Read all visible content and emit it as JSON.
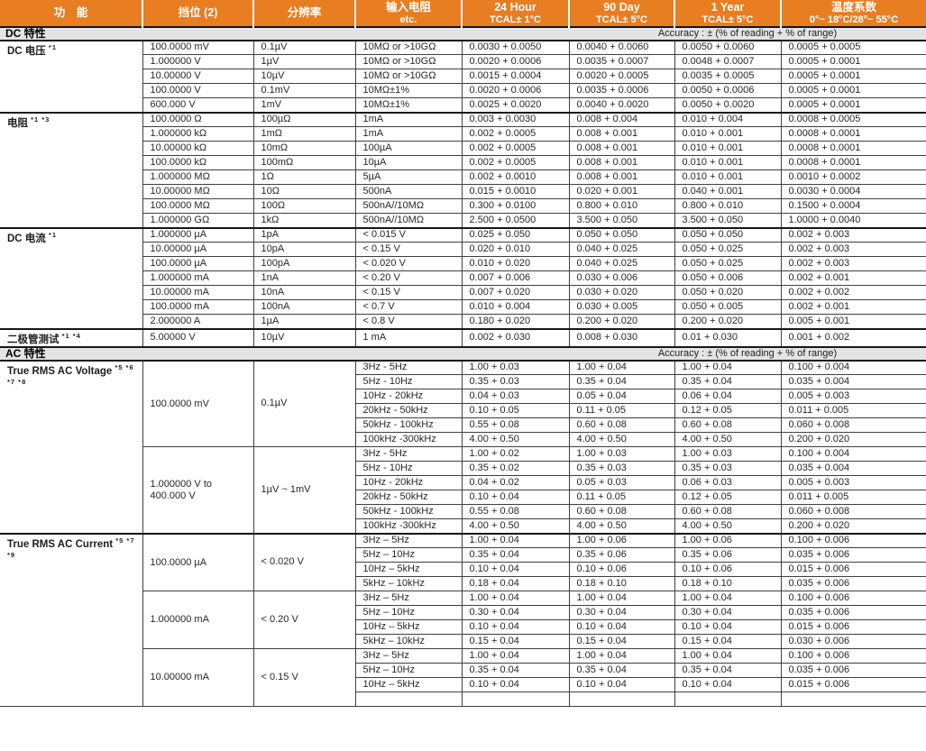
{
  "colors": {
    "accent_orange": "#E87D22",
    "band_gray": "#E4E4E4",
    "grid_line": "#3F3F3F"
  },
  "header": {
    "columns": [
      {
        "line1": "功　能",
        "line2": ""
      },
      {
        "line1": "挡位 (2)",
        "line2": ""
      },
      {
        "line1": "分辨率",
        "line2": ""
      },
      {
        "line1": "输入电阻",
        "line2": "etc."
      },
      {
        "line1": "24 Hour",
        "line2": "TCAL± 1°C"
      },
      {
        "line1": "90 Day",
        "line2": "TCAL± 5°C"
      },
      {
        "line1": "1 Year",
        "line2": "TCAL± 5°C"
      },
      {
        "line1": "温度系数",
        "line2": "0°~ 18°C/28°~ 55°C"
      }
    ]
  },
  "sections": [
    {
      "title": "DC 特性",
      "note": "Accuracy : ± (% of reading + % of range)",
      "functions": [
        {
          "label": "DC 电压",
          "notes": "*1",
          "groups": [
            {
              "span": [],
              "rows": [
                [
                  "100.0000 mV",
                  "0.1µV",
                  "10MΩ or >10GΩ",
                  "0.0030 + 0.0050",
                  "0.0040 + 0.0060",
                  "0.0050 + 0.0060",
                  "0.0005 + 0.0005"
                ],
                [
                  "1.000000 V",
                  "1µV",
                  "10MΩ or >10GΩ",
                  "0.0020 + 0.0006",
                  "0.0035 + 0.0007",
                  "0.0048 + 0.0007",
                  "0.0005 + 0.0001"
                ],
                [
                  "10.00000 V",
                  "10µV",
                  "10MΩ or >10GΩ",
                  "0.0015 + 0.0004",
                  "0.0020 + 0.0005",
                  "0.0035 + 0.0005",
                  "0.0005 + 0.0001"
                ],
                [
                  "100.0000 V",
                  "0.1mV",
                  "10MΩ±1%",
                  "0.0020 + 0.0006",
                  "0.0035 + 0.0006",
                  "0.0050 + 0.0006",
                  "0.0005 + 0.0001"
                ],
                [
                  "600.000 V",
                  "1mV",
                  "10MΩ±1%",
                  "0.0025 + 0.0020",
                  "0.0040 + 0.0020",
                  "0.0050 + 0.0020",
                  "0.0005 + 0.0001"
                ]
              ]
            }
          ]
        },
        {
          "label": "电阻",
          "notes": "*1 *3",
          "groups": [
            {
              "span": [],
              "rows": [
                [
                  "100.0000 Ω",
                  "100µΩ",
                  "1mA",
                  "0.003 + 0.0030",
                  "0.008 + 0.004",
                  "0.010 + 0.004",
                  "0.0008 + 0.0005"
                ],
                [
                  "1.000000 kΩ",
                  "1mΩ",
                  "1mA",
                  "0.002 + 0.0005",
                  "0.008 + 0.001",
                  "0.010 + 0.001",
                  "0.0008 + 0.0001"
                ],
                [
                  "10.00000 kΩ",
                  "10mΩ",
                  "100µA",
                  "0.002 + 0.0005",
                  "0.008 + 0.001",
                  "0.010 + 0.001",
                  "0.0008 + 0.0001"
                ],
                [
                  "100.0000 kΩ",
                  "100mΩ",
                  "10µA",
                  "0.002 + 0.0005",
                  "0.008 + 0.001",
                  "0.010 + 0.001",
                  "0.0008 + 0.0001"
                ],
                [
                  "1.000000 MΩ",
                  "1Ω",
                  "5µA",
                  "0.002 + 0.0010",
                  "0.008 + 0.001",
                  "0.010 + 0.001",
                  "0.0010 + 0.0002"
                ],
                [
                  "10.00000 MΩ",
                  "10Ω",
                  "500nA",
                  "0.015 + 0.0010",
                  "0.020 + 0.001",
                  "0.040 + 0.001",
                  "0.0030 + 0.0004"
                ],
                [
                  "100.0000 MΩ",
                  "100Ω",
                  "500nA//10MΩ",
                  "0.300 + 0.0100",
                  "0.800 + 0.010",
                  "0.800 + 0.010",
                  "0.1500 + 0.0004"
                ],
                [
                  "1.000000 GΩ",
                  "1kΩ",
                  "500nA//10MΩ",
                  "2.500 + 0.0500",
                  "3.500 + 0.050",
                  "3.500 + 0.050",
                  "1.0000 + 0.0040"
                ]
              ]
            }
          ]
        },
        {
          "label": "DC 电流",
          "notes": "*1",
          "groups": [
            {
              "span": [],
              "rows": [
                [
                  "1.000000 µA",
                  "1pA",
                  "< 0.015 V",
                  "0.025 + 0.050",
                  "0.050 + 0.050",
                  "0.050 + 0.050",
                  "0.002 + 0.003"
                ],
                [
                  "10.00000 µA",
                  "10pA",
                  "< 0.15 V",
                  "0.020 + 0.010",
                  "0.040 + 0.025",
                  "0.050 + 0.025",
                  "0.002 + 0.003"
                ],
                [
                  "100.0000 µA",
                  "100pA",
                  "< 0.020 V",
                  "0.010 + 0.020",
                  "0.040 + 0.025",
                  "0.050 + 0.025",
                  "0.002 + 0.003"
                ],
                [
                  "1.000000 mA",
                  "1nA",
                  "< 0.20 V",
                  "0.007 + 0.006",
                  "0.030 + 0.006",
                  "0.050 + 0.006",
                  "0.002 + 0.001"
                ],
                [
                  "10.00000 mA",
                  "10nA",
                  "< 0.15 V",
                  "0.007 + 0.020",
                  "0.030 + 0.020",
                  "0.050 + 0.020",
                  "0.002 + 0.002"
                ],
                [
                  "100.0000 mA",
                  "100nA",
                  "< 0.7 V",
                  "0.010 + 0.004",
                  "0.030 + 0.005",
                  "0.050 + 0.005",
                  "0.002 + 0.001"
                ],
                [
                  "2.000000 A",
                  "1µA",
                  "< 0.8 V",
                  "0.180 + 0.020",
                  "0.200 + 0.020",
                  "0.200 + 0.020",
                  "0.005 + 0.001"
                ]
              ]
            }
          ]
        },
        {
          "label": "二极管测试",
          "notes": "*1 *4",
          "groups": [
            {
              "span": [],
              "rows": [
                [
                  "5.00000 V",
                  "10µV",
                  "1 mA",
                  "0.002 + 0.030",
                  "0.008 + 0.030",
                  "0.01 + 0.030",
                  "0.001 + 0.002"
                ]
              ]
            }
          ]
        }
      ]
    },
    {
      "title": "AC 特性",
      "note": "Accuracy : ± (% of reading + % of range)",
      "functions": [
        {
          "label": "True RMS AC Voltage",
          "notes": "*5 *6 *7 *8",
          "groups": [
            {
              "span": [
                "100.0000 mV",
                "0.1µV"
              ],
              "rows": [
                [
                  "3Hz - 5Hz",
                  "1.00 + 0.03",
                  "1.00 + 0.04",
                  "1.00 + 0.04",
                  "0.100 + 0.004"
                ],
                [
                  "5Hz - 10Hz",
                  "0.35 + 0.03",
                  "0.35 + 0.04",
                  "0.35 + 0.04",
                  "0.035 + 0.004"
                ],
                [
                  "10Hz - 20kHz",
                  "0.04 + 0.03",
                  "0.05 + 0.04",
                  "0.06 + 0.04",
                  "0.005 + 0.003"
                ],
                [
                  "20kHz - 50kHz",
                  "0.10 + 0.05",
                  "0.11 + 0.05",
                  "0.12 + 0.05",
                  "0.011 + 0.005"
                ],
                [
                  "50kHz - 100kHz",
                  "0.55 + 0.08",
                  "0.60 + 0.08",
                  "0.60 + 0.08",
                  "0.060 + 0.008"
                ],
                [
                  "100kHz -300kHz",
                  "4.00 + 0.50",
                  "4.00 + 0.50",
                  "4.00 + 0.50",
                  "0.200 + 0.020"
                ]
              ]
            },
            {
              "span": [
                "1.000000 V to 400.000 V",
                "1µV ~ 1mV"
              ],
              "rows": [
                [
                  "3Hz - 5Hz",
                  "1.00 + 0.02",
                  "1.00 + 0.03",
                  "1.00 + 0.03",
                  "0.100 + 0.004"
                ],
                [
                  "5Hz - 10Hz",
                  "0.35 + 0.02",
                  "0.35 + 0.03",
                  "0.35 + 0.03",
                  "0.035 + 0.004"
                ],
                [
                  "10Hz - 20kHz",
                  "0.04 + 0.02",
                  "0.05 + 0.03",
                  "0.06 + 0.03",
                  "0.005 + 0.003"
                ],
                [
                  "20kHz - 50kHz",
                  "0.10 + 0.04",
                  "0.11 + 0.05",
                  "0.12 + 0.05",
                  "0.011 + 0.005"
                ],
                [
                  "50kHz - 100kHz",
                  "0.55 + 0.08",
                  "0.60 + 0.08",
                  "0.60 + 0.08",
                  "0.060 + 0.008"
                ],
                [
                  "100kHz -300kHz",
                  "4.00 + 0.50",
                  "4.00 + 0.50",
                  "4.00 + 0.50",
                  "0.200 + 0.020"
                ]
              ]
            }
          ]
        },
        {
          "label": "True RMS AC Current",
          "notes": "*5 *7 *9",
          "groups": [
            {
              "span": [
                "100.0000 µA",
                "< 0.020 V"
              ],
              "rows": [
                [
                  "3Hz – 5Hz",
                  "1.00 + 0.04",
                  "1.00 + 0.06",
                  "1.00 + 0.06",
                  "0.100 + 0.006"
                ],
                [
                  "5Hz – 10Hz",
                  "0.35 + 0.04",
                  "0.35 + 0.06",
                  "0.35 + 0.06",
                  "0.035 + 0.006"
                ],
                [
                  "10Hz – 5kHz",
                  "0.10 + 0.04",
                  "0.10 + 0.06",
                  "0.10 + 0.06",
                  "0.015 + 0.006"
                ],
                [
                  "5kHz – 10kHz",
                  "0.18 + 0.04",
                  "0.18 + 0.10",
                  "0.18 + 0.10",
                  "0.035 + 0.006"
                ]
              ]
            },
            {
              "span": [
                "1.000000 mA",
                "< 0.20 V"
              ],
              "rows": [
                [
                  "3Hz – 5Hz",
                  "1.00 + 0.04",
                  "1.00 + 0.04",
                  "1.00 + 0.04",
                  "0.100 + 0.006"
                ],
                [
                  "5Hz – 10Hz",
                  "0.30 + 0.04",
                  "0.30 + 0.04",
                  "0.30 + 0.04",
                  "0.035 + 0.006"
                ],
                [
                  "10Hz – 5kHz",
                  "0.10 + 0.04",
                  "0.10 + 0.04",
                  "0.10 + 0.04",
                  "0.015 + 0.006"
                ],
                [
                  "5kHz – 10kHz",
                  "0.15 + 0.04",
                  "0.15 + 0.04",
                  "0.15 + 0.04",
                  "0.030 + 0.006"
                ]
              ]
            },
            {
              "span": [
                "10.00000 mA",
                "< 0.15 V"
              ],
              "rows": [
                [
                  "3Hz – 5Hz",
                  "1.00 + 0.04",
                  "1.00 + 0.04",
                  "1.00 + 0.04",
                  "0.100 + 0.006"
                ],
                [
                  "5Hz – 10Hz",
                  "0.35 + 0.04",
                  "0.35 + 0.04",
                  "0.35 + 0.04",
                  "0.035 + 0.006"
                ],
                [
                  "10Hz – 5kHz",
                  "0.10 + 0.04",
                  "0.10 + 0.04",
                  "0.10 + 0.04",
                  "0.015 + 0.006"
                ],
                [
                  "",
                  "",
                  "",
                  "",
                  ""
                ]
              ]
            }
          ]
        }
      ]
    }
  ]
}
